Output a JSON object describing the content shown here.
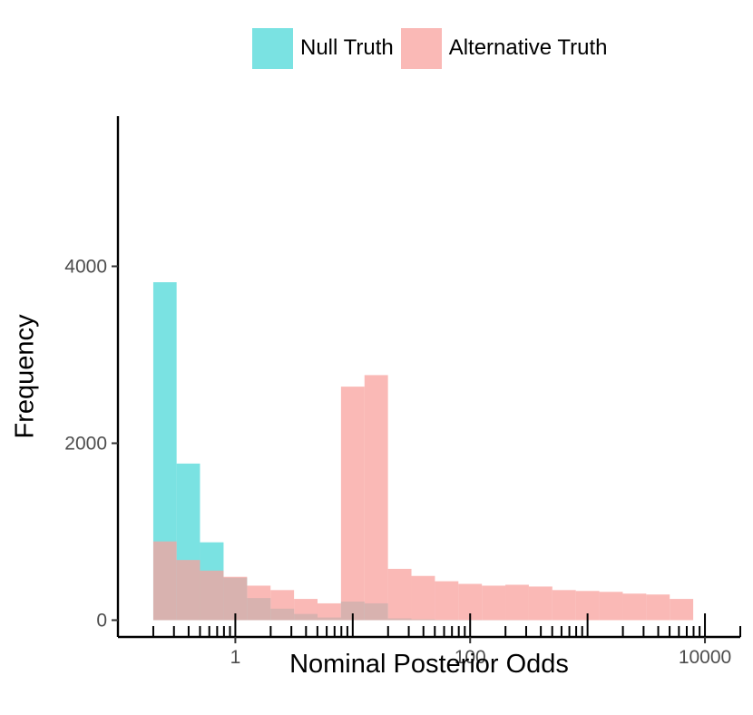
{
  "legend": {
    "items": [
      {
        "label": "Null Truth",
        "color": "#4dd8d8"
      },
      {
        "label": "Alternative Truth",
        "color": "#f8a29d"
      }
    ]
  },
  "chart_data": {
    "type": "histogram",
    "title": "",
    "xlabel": "Nominal Posterior Odds",
    "ylabel": "Frequency",
    "x_scale": "log10",
    "xlim": [
      0.1,
      20000
    ],
    "ylim": [
      -190,
      5800
    ],
    "y_ticks": [
      0,
      2000,
      4000
    ],
    "x_ticks": [
      1,
      100,
      10000
    ],
    "x_tick_labels": [
      "1",
      "100",
      "10000"
    ],
    "bin_edges": [
      0.2,
      0.316,
      0.5,
      0.794,
      1.259,
      1.995,
      3.162,
      5.012,
      7.943,
      12.59,
      19.95,
      31.62,
      50.12,
      79.43,
      125.9,
      199.5,
      316.2,
      501.2,
      794.3,
      1259,
      1995,
      3162,
      5012,
      7943
    ],
    "series": [
      {
        "name": "Null Truth",
        "color": "#4dd8d8",
        "opacity": 0.75,
        "values": [
          3820,
          1770,
          880,
          480,
          250,
          130,
          70,
          30,
          210,
          190,
          20,
          10,
          5,
          3,
          2,
          2,
          1,
          1,
          0,
          0,
          0,
          0,
          0
        ]
      },
      {
        "name": "Alternative Truth",
        "color": "#f8a29d",
        "opacity": 0.75,
        "values": [
          890,
          680,
          560,
          490,
          390,
          340,
          240,
          190,
          2640,
          2770,
          580,
          500,
          440,
          410,
          390,
          400,
          380,
          340,
          330,
          320,
          300,
          290,
          240
        ]
      }
    ]
  }
}
